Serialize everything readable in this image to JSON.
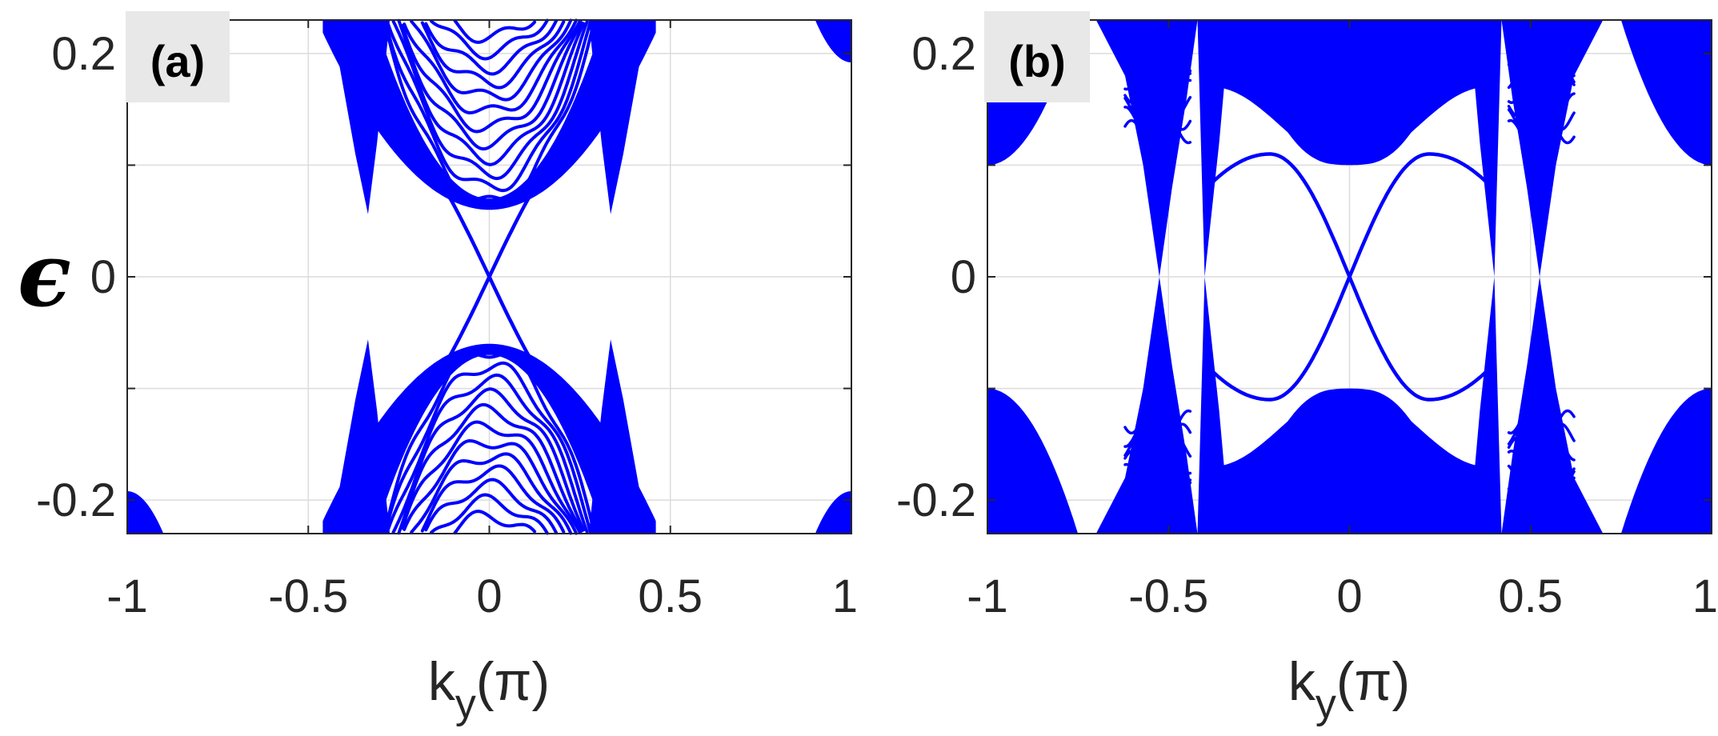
{
  "y_symbol": "ϵ",
  "chart_data": [
    {
      "type": "line",
      "panel_label": "(a)",
      "xlabel": "k",
      "xlabel_subscript": "y",
      "xlabel_unit": "(π)",
      "xlim": [
        -1,
        1
      ],
      "ylim": [
        -0.23,
        0.23
      ],
      "xticks": [
        "-1",
        "-0.5",
        "0",
        "0.5",
        "1"
      ],
      "yticks": [
        "0.2",
        "0",
        "-0.2"
      ],
      "grid": true,
      "line_color": "#0000ff",
      "edge_state": {
        "crossing_k": 0,
        "end_k": 0.31,
        "end_energy": 0.135
      },
      "bulk_bands": [
        {
          "k_range": [
            -0.45,
            -0.32
          ],
          "min_abs_energy": 0.055
        },
        {
          "k_range": [
            -0.3,
            0.3
          ],
          "min_abs_energy": 0.06
        },
        {
          "k_range": [
            0.32,
            0.45
          ],
          "min_abs_energy": 0.055
        },
        {
          "k_range": [
            0.9,
            1.0
          ],
          "min_abs_energy": 0.19
        },
        {
          "k_range": [
            -1.0,
            -0.9
          ],
          "min_abs_energy": 0.19
        }
      ]
    },
    {
      "type": "line",
      "panel_label": "(b)",
      "xlabel": "k",
      "xlabel_subscript": "y",
      "xlabel_unit": "(π)",
      "xlim": [
        -1,
        1
      ],
      "ylim": [
        -0.23,
        0.23
      ],
      "xticks": [
        "-1",
        "-0.5",
        "0",
        "0.5",
        "1"
      ],
      "yticks": [
        "0.2",
        "0",
        "-0.2"
      ],
      "grid": true,
      "line_color": "#0000ff",
      "edge_state": {
        "crossing_k": 0,
        "extremum_k": 0.22,
        "extremum_energy": 0.11,
        "end_k": 0.4
      },
      "bulk_bands": [
        {
          "k_range": [
            -0.68,
            -0.5
          ],
          "min_abs_energy": 0.0
        },
        {
          "k_range": [
            -0.5,
            -0.38
          ],
          "min_abs_energy": 0.0
        },
        {
          "k_range": [
            -0.38,
            0.38
          ],
          "min_abs_energy": 0.1
        },
        {
          "k_range": [
            0.38,
            0.5
          ],
          "min_abs_energy": 0.0
        },
        {
          "k_range": [
            0.5,
            0.68
          ],
          "min_abs_energy": 0.0
        },
        {
          "k_range": [
            0.75,
            1.0
          ],
          "min_abs_energy": 0.1
        },
        {
          "k_range": [
            -1.0,
            -0.75
          ],
          "min_abs_energy": 0.1
        }
      ]
    }
  ]
}
